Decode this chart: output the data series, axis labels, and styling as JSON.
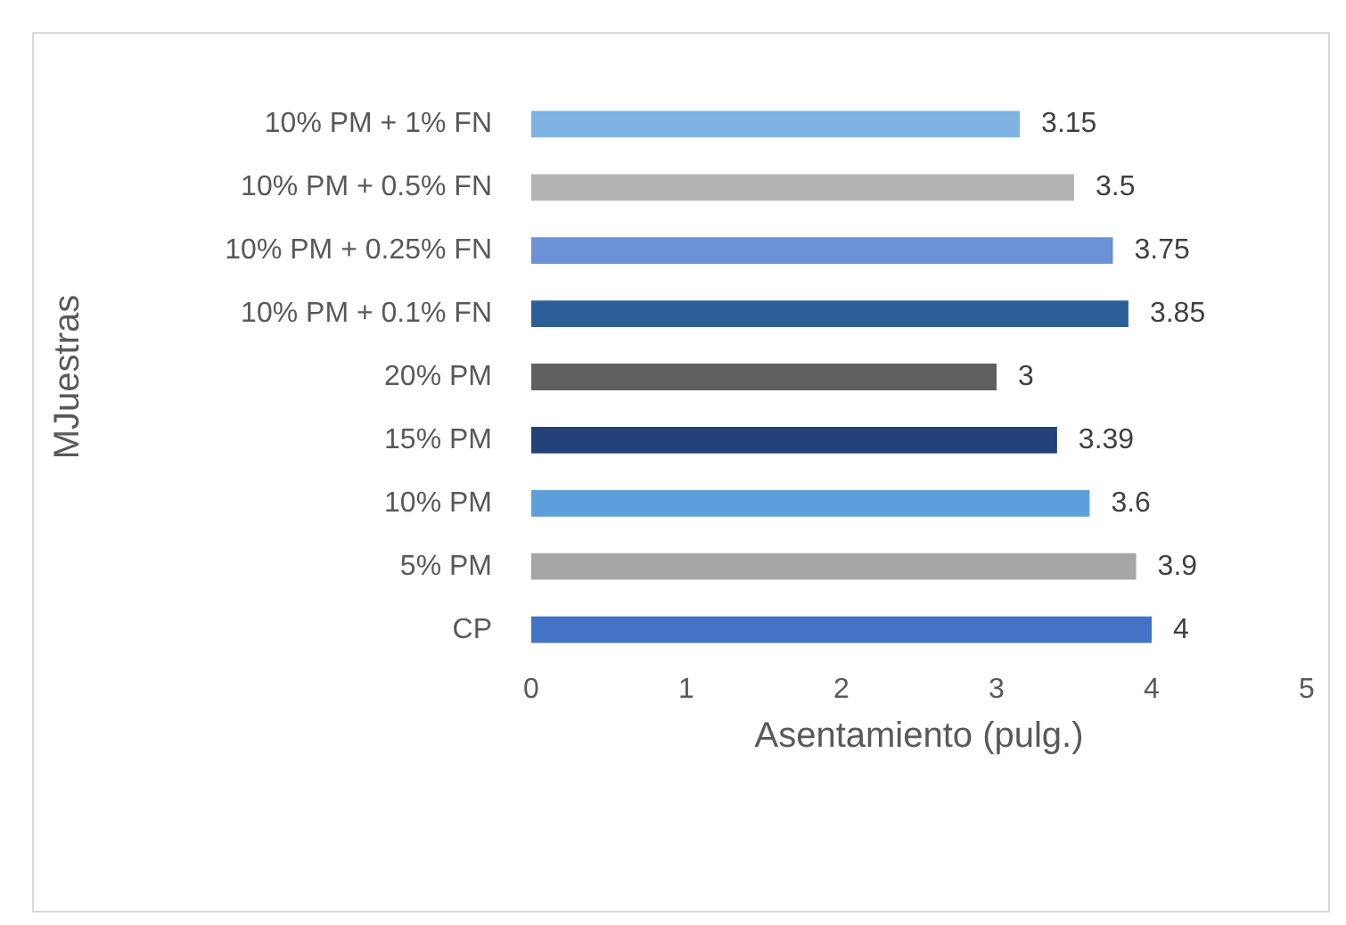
{
  "chart_data": {
    "type": "bar",
    "orientation": "horizontal",
    "xlabel": "Asentamiento (pulg.)",
    "ylabel": "MJuestras",
    "categories": [
      "10% PM + 1% FN",
      "10% PM + 0.5% FN",
      "10% PM + 0.25% FN",
      "10% PM + 0.1% FN",
      "20% PM",
      "15% PM",
      "10% PM",
      "5% PM",
      "CP"
    ],
    "values": [
      3.15,
      3.5,
      3.75,
      3.85,
      3,
      3.39,
      3.6,
      3.9,
      4
    ],
    "colors": [
      "#7eb3e3",
      "#b4b4b4",
      "#6b91d6",
      "#2c5f97",
      "#606060",
      "#24417a",
      "#5b9fdc",
      "#a6a6a6",
      "#4472c4"
    ],
    "xlim": [
      0,
      5
    ],
    "xticks": [
      0,
      1,
      2,
      3,
      4,
      5
    ],
    "data_labels": true,
    "grid": false
  }
}
